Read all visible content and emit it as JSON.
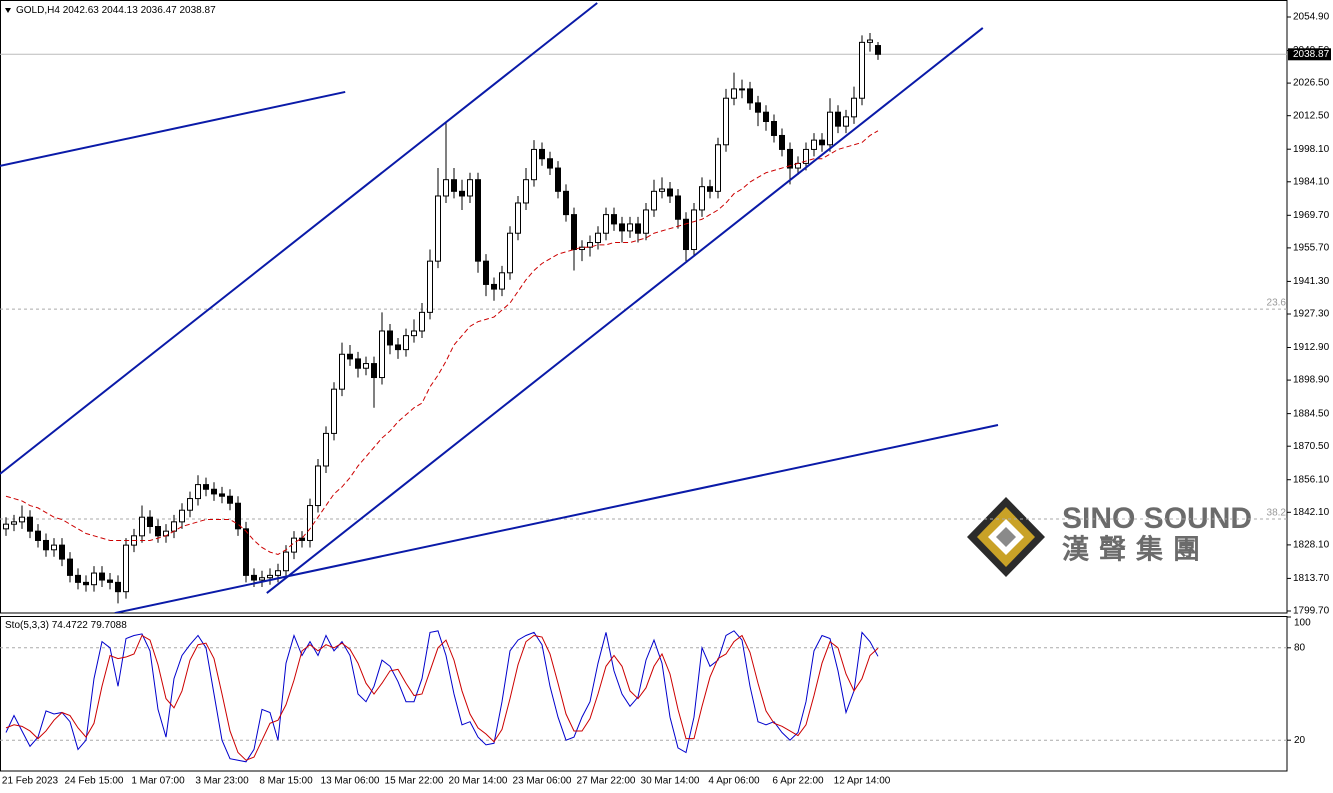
{
  "chart_data": [
    {
      "type": "candlestick",
      "symbol": "GOLD,H4",
      "categories": [
        null,
        null,
        null,
        "21 Feb 2023",
        null,
        null,
        null,
        null,
        null,
        null,
        null,
        "24 Feb 15:00",
        null,
        null,
        null,
        null,
        null,
        null,
        null,
        "1 Mar 07:00",
        null,
        null,
        null,
        null,
        null,
        null,
        null,
        "3 Mar 23:00",
        null,
        null,
        null,
        null,
        null,
        null,
        null,
        "8 Mar 15:00",
        null,
        null,
        null,
        null,
        null,
        null,
        null,
        "13 Mar 06:00",
        null,
        null,
        null,
        null,
        null,
        null,
        null,
        "15 Mar 22:00",
        null,
        null,
        null,
        null,
        null,
        null,
        null,
        "20 Mar 14:00",
        null,
        null,
        null,
        null,
        null,
        null,
        null,
        "23 Mar 06:00",
        null,
        null,
        null,
        null,
        null,
        null,
        null,
        "27 Mar 22:00",
        null,
        null,
        null,
        null,
        null,
        null,
        null,
        "30 Mar 14:00",
        null,
        null,
        null,
        null,
        null,
        null,
        null,
        "4 Apr 06:00",
        null,
        null,
        null,
        null,
        null,
        null,
        null,
        "6 Apr 22:00",
        null,
        null,
        null,
        null,
        null,
        null,
        null,
        "12 Apr 14:00",
        null,
        null
      ],
      "open": [
        1835,
        1837,
        1838,
        1840,
        1834,
        1830,
        1826,
        1828,
        1822,
        1815,
        1812,
        1811,
        1816,
        1813,
        1812,
        1808,
        1828,
        1832,
        1840,
        1836,
        1832,
        1834,
        1838,
        1843,
        1848,
        1854,
        1852,
        1850,
        1849,
        1846,
        1835,
        1815,
        1813,
        1814,
        1815,
        1817,
        1825,
        1831,
        1830,
        1845,
        1862,
        1876,
        1895,
        1910,
        1908,
        1904,
        1906,
        1900,
        1920,
        1914,
        1912,
        1918,
        1920,
        1928,
        1950,
        1978,
        1985,
        1980,
        1978,
        1985,
        1950,
        1940,
        1938,
        1945,
        1962,
        1975,
        1985,
        1998,
        1994,
        1990,
        1980,
        1970,
        1955,
        1956,
        1958,
        1962,
        1970,
        1966,
        1963,
        1966,
        1962,
        1972,
        1980,
        1981,
        1978,
        1968,
        1955,
        1972,
        1982,
        1980,
        2000,
        2020,
        2024,
        2024,
        2018,
        2014,
        2010,
        2004,
        1998,
        1990,
        1992,
        1998,
        2002,
        2000,
        2014,
        2008,
        2012,
        2020,
        2044,
        2042.63
      ],
      "high": [
        1840,
        1841,
        1845,
        1843,
        1837,
        1833,
        1831,
        1831,
        1825,
        1818,
        1815,
        1819,
        1819,
        1816,
        1815,
        1831,
        1835,
        1845,
        1843,
        1839,
        1837,
        1841,
        1846,
        1851,
        1858,
        1857,
        1855,
        1853,
        1852,
        1849,
        1838,
        1818,
        1817,
        1818,
        1820,
        1828,
        1834,
        1834,
        1848,
        1865,
        1879,
        1898,
        1915,
        1914,
        1911,
        1909,
        1909,
        1928,
        1923,
        1917,
        1921,
        1925,
        1932,
        1955,
        1990,
        2010,
        1990,
        1985,
        1988,
        1988,
        1953,
        1943,
        1948,
        1965,
        1978,
        1990,
        2002,
        2001,
        1997,
        1993,
        1983,
        1973,
        1959,
        1961,
        1965,
        1973,
        1973,
        1969,
        1969,
        1969,
        1975,
        1985,
        1986,
        1984,
        1981,
        1971,
        1975,
        1986,
        1985,
        2003,
        2024,
        2031,
        2028,
        2027,
        2021,
        2017,
        2013,
        2007,
        2001,
        1995,
        2001,
        2005,
        2005,
        2020,
        2017,
        2015,
        2025,
        2047,
        2048,
        2044.13
      ],
      "low": [
        1832,
        1834,
        1835,
        1831,
        1827,
        1823,
        1823,
        1819,
        1812,
        1809,
        1808,
        1808,
        1810,
        1809,
        1803,
        1805,
        1825,
        1829,
        1833,
        1829,
        1829,
        1831,
        1835,
        1840,
        1845,
        1849,
        1847,
        1846,
        1843,
        1832,
        1812,
        1810,
        1810,
        1811,
        1812,
        1814,
        1822,
        1827,
        1827,
        1842,
        1859,
        1873,
        1892,
        1905,
        1900,
        1901,
        1887,
        1897,
        1910,
        1908,
        1909,
        1915,
        1917,
        1925,
        1947,
        1975,
        1977,
        1972,
        1975,
        1945,
        1935,
        1933,
        1935,
        1942,
        1959,
        1972,
        1982,
        1991,
        1987,
        1977,
        1967,
        1946,
        1950,
        1952,
        1955,
        1959,
        1963,
        1958,
        1960,
        1958,
        1959,
        1969,
        1977,
        1975,
        1964,
        1950,
        1952,
        1969,
        1977,
        1977,
        1997,
        2017,
        2020,
        2015,
        2008,
        2006,
        2001,
        1995,
        1983,
        1987,
        1989,
        1995,
        1997,
        1997,
        2005,
        2005,
        2009,
        2017,
        2040,
        2036.47
      ],
      "close": [
        1837,
        1838,
        1840,
        1834,
        1830,
        1826,
        1828,
        1822,
        1815,
        1812,
        1811,
        1816,
        1813,
        1812,
        1808,
        1828,
        1832,
        1840,
        1836,
        1832,
        1834,
        1838,
        1843,
        1848,
        1854,
        1852,
        1850,
        1849,
        1846,
        1835,
        1815,
        1813,
        1814,
        1815,
        1817,
        1825,
        1831,
        1830,
        1845,
        1862,
        1876,
        1895,
        1910,
        1908,
        1904,
        1906,
        1900,
        1920,
        1914,
        1912,
        1918,
        1920,
        1928,
        1950,
        1978,
        1985,
        1980,
        1978,
        1985,
        1950,
        1940,
        1938,
        1945,
        1962,
        1975,
        1985,
        1998,
        1994,
        1990,
        1980,
        1970,
        1955,
        1956,
        1958,
        1962,
        1970,
        1966,
        1963,
        1966,
        1962,
        1972,
        1980,
        1981,
        1978,
        1968,
        1955,
        1972,
        1982,
        1980,
        2000,
        2020,
        2024,
        2024,
        2018,
        2014,
        2010,
        2004,
        1998,
        1990,
        1992,
        1998,
        2002,
        2000,
        2014,
        2008,
        2012,
        2020,
        2044,
        2045,
        2038.87
      ],
      "ma": {
        "color": "#cc0000",
        "values": [
          1849,
          1848,
          1847,
          1845,
          1844,
          1842,
          1840,
          1839,
          1837,
          1835,
          1833,
          1832,
          1831,
          1830,
          1830,
          1830,
          1830,
          1830,
          1830,
          1831,
          1832,
          1834,
          1836,
          1837,
          1838,
          1839,
          1839,
          1839,
          1839,
          1837,
          1834,
          1830,
          1827,
          1825,
          1824,
          1826,
          1829,
          1831,
          1835,
          1840,
          1845,
          1850,
          1853,
          1857,
          1862,
          1866,
          1870,
          1874,
          1877,
          1881,
          1884,
          1887,
          1889,
          1896,
          1901,
          1907,
          1914,
          1918,
          1922,
          1924,
          1925,
          1926,
          1929,
          1932,
          1937,
          1942,
          1946,
          1949,
          1951,
          1953,
          1954,
          1955,
          1956,
          1956,
          1957,
          1957,
          1958,
          1958,
          1958,
          1959,
          1960,
          1962,
          1963,
          1964,
          1965,
          1966,
          1967,
          1968,
          1970,
          1972,
          1975,
          1979,
          1981,
          1984,
          1986,
          1988,
          1989,
          1990,
          1991,
          1992,
          1993,
          1994,
          1994,
          1996,
          1998,
          1999,
          2000,
          2001,
          2004,
          2006
        ]
      },
      "ylim": [
        1798.84,
        2062.2
      ],
      "yticks": [
        {
          "value": 2054.9,
          "label": "2054.90"
        },
        {
          "value": 2040.5,
          "label": "2040.50"
        },
        {
          "value": 2026.5,
          "label": "2026.50"
        },
        {
          "value": 2012.5,
          "label": "2012.50"
        },
        {
          "value": 1998.1,
          "label": "1998.10"
        },
        {
          "value": 1984.1,
          "label": "1984.10"
        },
        {
          "value": 1969.7,
          "label": "1969.70"
        },
        {
          "value": 1955.7,
          "label": "1955.70"
        },
        {
          "value": 1941.3,
          "label": "1941.30"
        },
        {
          "value": 1927.3,
          "label": "1927.30"
        },
        {
          "value": 1912.9,
          "label": "1912.90"
        },
        {
          "value": 1898.9,
          "label": "1898.90"
        },
        {
          "value": 1884.5,
          "label": "1884.50"
        },
        {
          "value": 1870.5,
          "label": "1870.50"
        },
        {
          "value": 1856.1,
          "label": "1856.10"
        },
        {
          "value": 1842.1,
          "label": "1842.10"
        },
        {
          "value": 1828.1,
          "label": "1828.10"
        },
        {
          "value": 1813.7,
          "label": "1813.70"
        },
        {
          "value": 1799.7,
          "label": "1799.70"
        }
      ],
      "last_price": 2038.87,
      "levels": [
        {
          "name": "23.6",
          "value": 1929.4
        },
        {
          "name": "38.2",
          "value": 1839.2
        }
      ],
      "trendline_color": "#0a1aa8",
      "trendlines": [
        {
          "x": [
            -0.75,
            42.4
          ],
          "y": [
            1990.9,
            2022.7
          ]
        },
        {
          "x": [
            -0.75,
            73.9
          ],
          "y": [
            1858.6,
            2060.9
          ]
        },
        {
          "x": [
            32.6,
            122.1
          ],
          "y": [
            1807.4,
            2050.2
          ]
        },
        {
          "x": [
            13.6,
            124
          ],
          "y": [
            1798.8,
            1879.6
          ]
        }
      ]
    },
    {
      "type": "line",
      "title": "Sto(5,3,3)",
      "ylim": [
        0,
        100
      ],
      "yticks": [
        100,
        80,
        20
      ],
      "series": [
        {
          "color": "#0000cc",
          "values": [
            25,
            36,
            26,
            16,
            22,
            39,
            37,
            38,
            32,
            14,
            20,
            60,
            84,
            80,
            55,
            86,
            88,
            89,
            78,
            40,
            22,
            60,
            75,
            82,
            88,
            80,
            50,
            20,
            8,
            7,
            6,
            14,
            40,
            38,
            20,
            70,
            88,
            75,
            84,
            75,
            88,
            78,
            84,
            75,
            50,
            45,
            55,
            72,
            68,
            58,
            45,
            45,
            60,
            90,
            91,
            75,
            50,
            30,
            32,
            22,
            17,
            18,
            45,
            78,
            85,
            88,
            90,
            82,
            55,
            35,
            20,
            22,
            35,
            45,
            70,
            90,
            65,
            50,
            42,
            48,
            72,
            85,
            70,
            35,
            15,
            12,
            35,
            80,
            68,
            72,
            88,
            91,
            85,
            55,
            32,
            30,
            32,
            25,
            20,
            25,
            45,
            78,
            88,
            86,
            65,
            38,
            52,
            90,
            84,
            74.4722
          ]
        },
        {
          "color": "#cc0000",
          "values": [
            28,
            30,
            29,
            26,
            21,
            26,
            33,
            38,
            36,
            28,
            22,
            31,
            55,
            75,
            73,
            74,
            76,
            88,
            85,
            69,
            47,
            41,
            52,
            72,
            82,
            83,
            73,
            50,
            26,
            12,
            7,
            9,
            20,
            31,
            33,
            43,
            59,
            78,
            82,
            78,
            82,
            80,
            83,
            79,
            70,
            57,
            50,
            57,
            65,
            66,
            57,
            49,
            50,
            65,
            80,
            85,
            72,
            52,
            37,
            28,
            24,
            19,
            27,
            47,
            69,
            84,
            88,
            87,
            76,
            57,
            37,
            26,
            26,
            34,
            50,
            68,
            75,
            68,
            52,
            47,
            54,
            68,
            76,
            63,
            40,
            21,
            21,
            42,
            61,
            73,
            76,
            84,
            88,
            77,
            57,
            39,
            31,
            29,
            26,
            23,
            30,
            49,
            70,
            84,
            80,
            63,
            52,
            60,
            75,
            79.7088
          ]
        }
      ]
    }
  ],
  "watermark": {
    "brand": "SINO SOUND",
    "brand_cjk": "漢聲集團"
  }
}
